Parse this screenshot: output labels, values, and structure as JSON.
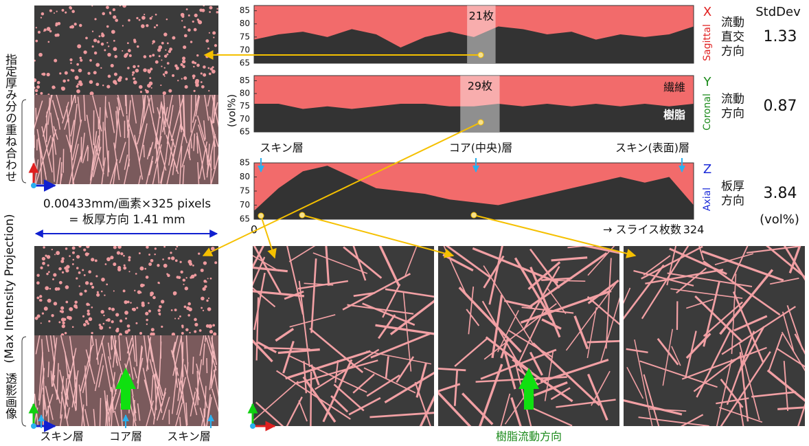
{
  "chart_data": [
    {
      "type": "area",
      "axis_letter": "X",
      "axis_name": "Sagittal",
      "axis_color": "#e02020",
      "direction": [
        "流動",
        "直交",
        "方向"
      ],
      "stddev": 1.33,
      "x": [
        0,
        18,
        36,
        54,
        72,
        90,
        108,
        126,
        144,
        162,
        180,
        198,
        216,
        234,
        252,
        270,
        288,
        306,
        324
      ],
      "series": [
        {
          "color": "#333333",
          "values": [
            74,
            76,
            77,
            75,
            78,
            76,
            71,
            75,
            77,
            75,
            79,
            78,
            76,
            77,
            74,
            76,
            75,
            76,
            79
          ]
        }
      ],
      "background_color": "#f26b6b",
      "xlim": [
        0,
        324
      ],
      "ylim": [
        65,
        87
      ],
      "yticks": [
        65,
        70,
        75,
        80,
        85
      ],
      "highlight": {
        "xlim": [
          157,
          178
        ],
        "label": "21枚"
      }
    },
    {
      "type": "area",
      "axis_letter": "Y",
      "axis_name": "Coronal",
      "axis_color": "#1a8a1a",
      "direction": [
        "流動",
        "方向"
      ],
      "stddev": 0.87,
      "ylabel": "(vol%)",
      "x": [
        0,
        18,
        36,
        54,
        72,
        90,
        108,
        126,
        144,
        162,
        180,
        198,
        216,
        234,
        252,
        270,
        288,
        306,
        324
      ],
      "series": [
        {
          "color": "#333333",
          "values": [
            76,
            76,
            74,
            75,
            74,
            75,
            76,
            76,
            75,
            75,
            76,
            75,
            76,
            75,
            76,
            75,
            76,
            75,
            76
          ]
        }
      ],
      "background_color": "#f26b6b",
      "xlim": [
        0,
        324
      ],
      "ylim": [
        65,
        87
      ],
      "yticks": [
        65,
        70,
        75,
        80,
        85
      ],
      "highlight": {
        "xlim": [
          152,
          181
        ],
        "label": "29枚"
      },
      "fiber_label": "繊維",
      "resin_label": "樹脂"
    },
    {
      "type": "area",
      "axis_letter": "Z",
      "axis_name": "Axial",
      "axis_color": "#1a2ad8",
      "direction": [
        "板厚",
        "方向"
      ],
      "stddev": 3.84,
      "x": [
        0,
        18,
        36,
        54,
        72,
        90,
        108,
        126,
        144,
        162,
        180,
        198,
        216,
        234,
        252,
        270,
        288,
        306,
        324
      ],
      "series": [
        {
          "color": "#333333",
          "values": [
            68,
            76,
            82,
            84,
            80,
            76,
            75,
            74,
            72,
            71,
            70,
            72,
            74,
            76,
            78,
            80,
            78,
            80,
            70
          ]
        }
      ],
      "background_color": "#f26b6b",
      "xlim": [
        0,
        324
      ],
      "ylim": [
        65,
        85
      ],
      "yticks": [
        65,
        70,
        75,
        80,
        85
      ],
      "xticks": [
        0,
        324
      ],
      "xlabel": "→ スライス枚数",
      "layer_labels": [
        "スキン層",
        "コア(中央)層",
        "スキン(表面)層"
      ]
    }
  ],
  "stddev_header": "StdDev",
  "stddev_unit": "(vol%)",
  "left_caption": "指定厚み分の重ね合わせ",
  "projection_caption": "(Max Intensity Projection)",
  "image_caption": "透影画像",
  "scale_text": [
    "0.00433mm/画素×325 pixels",
    "= 板厚方向 1.41 mm"
  ],
  "bottom_labels": [
    "スキン層",
    "コア層",
    "スキン層"
  ],
  "flow_label": "樹脂流動方向"
}
